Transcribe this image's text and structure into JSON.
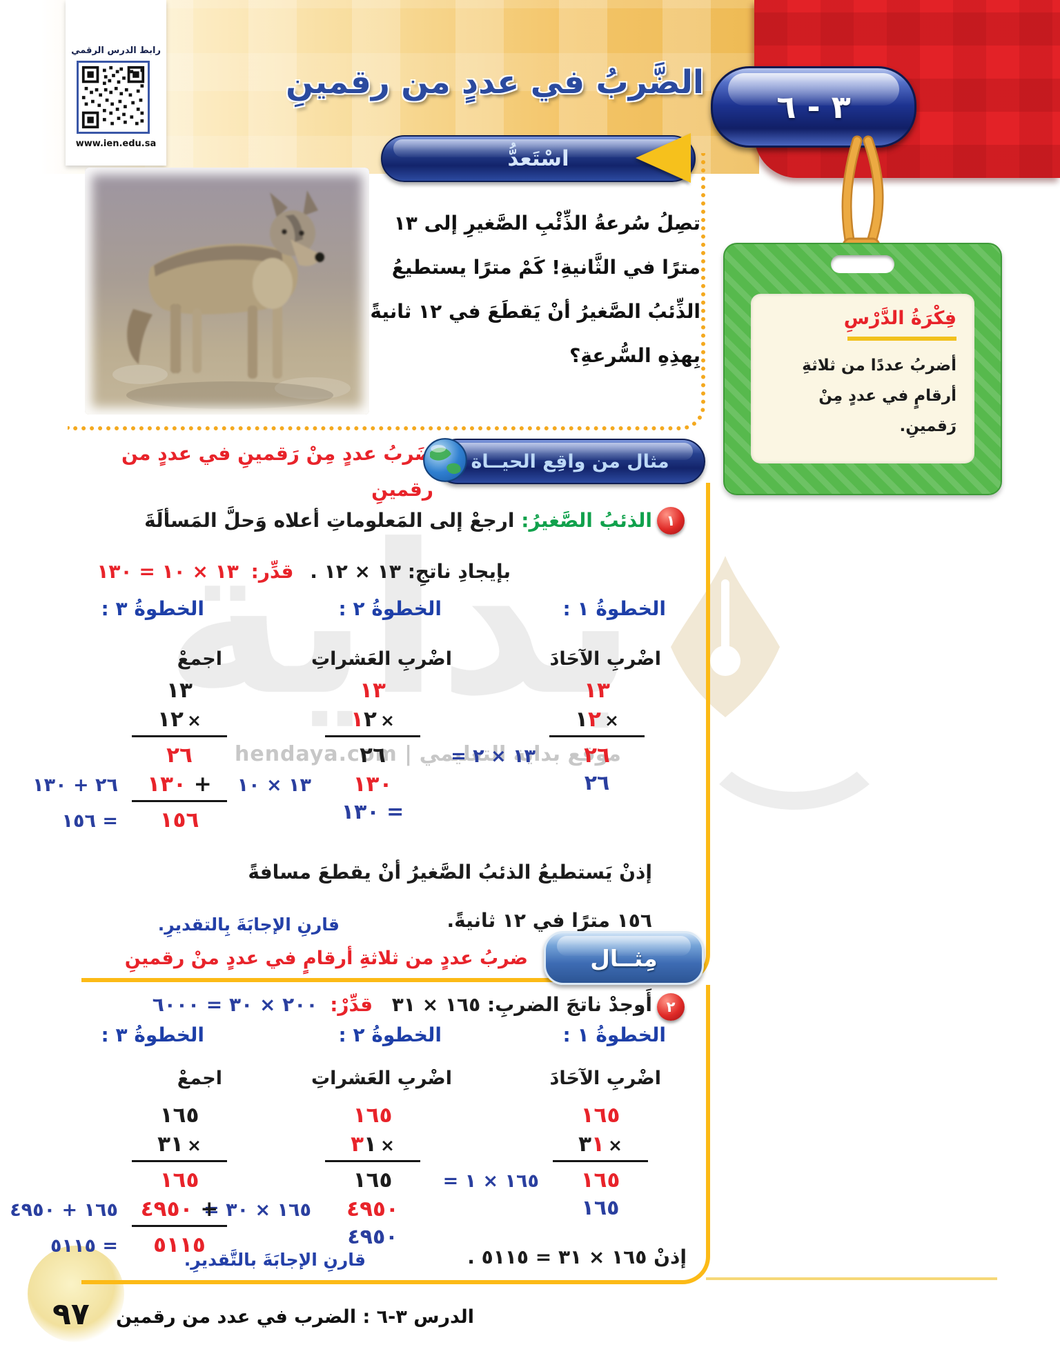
{
  "colors": {
    "accent_red": "#e8232a",
    "annotation_blue": "#2a3f9f",
    "step_blue": "#1e3fa8",
    "title_blue": "#2b4a9e",
    "green_label": "#10a14c",
    "box_yellow": "#fcba16",
    "tag_green": "#57b94d",
    "corner_red": "#e32227"
  },
  "header": {
    "qr_label": "رابط الدرس الرقمي",
    "qr_url": "www.ien.edu.sa",
    "badge": "٣ - ٦",
    "title": "الضَّربُ في عددٍ من رقمينِ",
    "ready": "اسْتَعدُّ"
  },
  "intro": {
    "text": "تصِلُ سُرعةُ الذِّئْبِ الصَّغيرِ إلى ١٣ مترًا في الثَّانيةِ! كَمْ مترًا يستطيعُ الذِّئبُ الصَّغيرُ أنْ يَقطَعَ في ١٢ ثانيةً بِهذِهِ السُّرعةِ؟"
  },
  "idea": {
    "title": "فِكْرَةُ الدَّرْسِ",
    "text": "أضربُ عددًا من ثلاثةِ أرقامٍ في عددٍ مِنْ رَقمينِ."
  },
  "ex1": {
    "side_label": "ضَربُ عددٍ مِنْ رَقمينِ في عددٍ من رقمينِ",
    "pill": "مثال من واقِع الحيــاة",
    "num": "١",
    "prompt_green": "الذئبُ الصَّغيرُ:",
    "prompt_rest": " ارجعْ إلى المَعلوماتِ أعلاه وَحلَّ المَسألَةَ",
    "find": "بإيجادِ ناتجِ: ١٣ × ١٢ .",
    "est_label": "قدِّر:",
    "est_expr": "١٣ × ١٠ = ١٣٠",
    "columns": [
      {
        "header": "الخطوةُ ١ :",
        "label": "اضْربِ الآحَادَ",
        "top": {
          "t": "١٣",
          "c": "red"
        },
        "mult": [
          {
            "t": "١",
            "c": "black"
          },
          {
            "t": "٢",
            "c": "red"
          }
        ],
        "prod1": {
          "t": "٢٦",
          "c": "red",
          "note": "١٣ × ٢ ="
        },
        "row2": null,
        "total": null,
        "below": {
          "t": "٢٦",
          "c": "blue"
        }
      },
      {
        "header": "الخطوةُ ٢ :",
        "label": "اضْربِ العَشراتِ",
        "top": {
          "t": "١٣",
          "c": "red"
        },
        "mult": [
          {
            "t": "١",
            "c": "red"
          },
          {
            "t": "٢",
            "c": "black"
          }
        ],
        "prod1": {
          "t": "٢٦",
          "c": "black",
          "note": null
        },
        "row2": {
          "t": "١٣٠",
          "c": "red",
          "plus": false,
          "note": "١٣ × ١٠"
        },
        "total": null,
        "below": {
          "t": "= ١٣٠",
          "c": "blue"
        }
      },
      {
        "header": "الخطوةُ ٣ :",
        "label": "اجمعْ",
        "top": {
          "t": "١٣",
          "c": "black"
        },
        "mult": [
          {
            "t": "١",
            "c": "black"
          },
          {
            "t": "٢",
            "c": "black"
          }
        ],
        "prod1": {
          "t": "٢٦",
          "c": "red",
          "note": null
        },
        "row2": {
          "t": "١٣٠",
          "c": "red",
          "plus": true,
          "note": "٢٦ + ١٣٠"
        },
        "total": {
          "t": "١٥٦",
          "c": "red",
          "note": "= ١٥٦"
        },
        "below": null
      }
    ],
    "conclusion_1": "إذنْ يَستطيعُ الذئبُ الصَّغيرُ أنْ يقطعَ مسافةً",
    "conclusion_2": "١٥٦ مترًا في ١٢ ثانيةً.",
    "compare": "قارنِ الإجابَةَ بِالتقديرِ."
  },
  "ex2": {
    "pill": "مِثــال",
    "side_label": "ضربُ عددٍ من ثلاثةِ أرقامٍ في عددٍ منْ رقمينِ",
    "num": "٢",
    "find": "أَوجدْ ناتجَ الضربِ: ١٦٥ × ٣١",
    "est_label": "قدِّرْ:",
    "est_expr": "٢٠٠ × ٣٠ = ٦٠٠٠",
    "columns": [
      {
        "header": "الخطوةُ ١ :",
        "label": "اضْربِ الآحَادَ",
        "top": {
          "t": "١٦٥",
          "c": "red"
        },
        "mult": [
          {
            "t": "٣",
            "c": "black"
          },
          {
            "t": "١",
            "c": "red"
          }
        ],
        "prod1": {
          "t": "١٦٥",
          "c": "red",
          "note": "١٦٥ × ١ ="
        },
        "row2": null,
        "total": null,
        "below": {
          "t": "١٦٥",
          "c": "blue"
        }
      },
      {
        "header": "الخطوةُ ٢ :",
        "label": "اضْربِ العَشراتِ",
        "top": {
          "t": "١٦٥",
          "c": "red"
        },
        "mult": [
          {
            "t": "٣",
            "c": "red"
          },
          {
            "t": "١",
            "c": "black"
          }
        ],
        "prod1": {
          "t": "١٦٥",
          "c": "black",
          "note": null
        },
        "row2": {
          "t": "٤٩٥٠",
          "c": "red",
          "plus": false,
          "note": "١٦٥ × ٣٠ ="
        },
        "total": null,
        "below": {
          "t": "٤٩٥٠",
          "c": "blue"
        }
      },
      {
        "header": "الخطوةُ ٣ :",
        "label": "اجمعْ",
        "top": {
          "t": "١٦٥",
          "c": "black"
        },
        "mult": [
          {
            "t": "٣",
            "c": "black"
          },
          {
            "t": "١",
            "c": "black"
          }
        ],
        "prod1": {
          "t": "١٦٥",
          "c": "red",
          "note": null
        },
        "row2": {
          "t": "٤٩٥٠",
          "c": "red",
          "plus": true,
          "note": "١٦٥ + ٤٩٥٠"
        },
        "total": {
          "t": "٥١١٥",
          "c": "red",
          "note": "= ٥١١٥"
        },
        "below": null
      }
    ],
    "conclusion": "إذنْ ١٦٥ × ٣١ = ٥١١٥ .",
    "compare": "قارنِ الإجابَةَ بالتَّقديرِ."
  },
  "watermark": {
    "word": "بداية",
    "row": "موقع بداية التعليمي | hendaya.com"
  },
  "footer": {
    "page": "٩٧",
    "lesson": "الدرس ٣-٦ :  الضرب في عدد من رقمين"
  }
}
